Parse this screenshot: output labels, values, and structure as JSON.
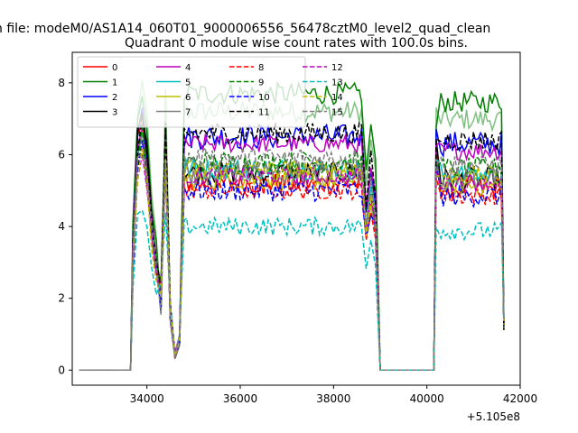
{
  "chart_data": {
    "type": "line",
    "suptitle": "n file: modeM0/AS1A14_060T01_9000006556_56478cztM0_level2_quad_clean",
    "title": "Quadrant 0 module wise count rates with 100.0s bins.",
    "xlabel": "",
    "ylabel": "",
    "x_offset_label": "+5.105e8",
    "xlim": [
      32400,
      42000
    ],
    "ylim": [
      -0.42,
      8.85
    ],
    "xticks": [
      34000,
      36000,
      38000,
      40000,
      42000
    ],
    "xtick_labels": [
      "34000",
      "36000",
      "38000",
      "40000",
      "42000"
    ],
    "yticks": [
      0,
      2,
      4,
      6,
      8
    ],
    "ytick_labels": [
      "0",
      "2",
      "4",
      "6",
      "8"
    ],
    "grid": false,
    "legend_location": "top-left",
    "legend_columns": 4,
    "segments": [
      [
        32550,
        33650
      ],
      [
        33650,
        34650
      ],
      [
        34650,
        38700
      ],
      [
        38700,
        39050
      ],
      [
        39050,
        40150
      ],
      [
        40150,
        41650
      ]
    ],
    "series": [
      {
        "name": "0",
        "color": "#ff0000",
        "dash": "solid",
        "plateau": 5.2,
        "noise": 0.3,
        "peak": 7.0
      },
      {
        "name": "1",
        "color": "#008000",
        "dash": "solid",
        "plateau": 7.7,
        "noise": 0.3,
        "peak": 7.5
      },
      {
        "name": "2",
        "color": "#0000ff",
        "dash": "solid",
        "plateau": 6.5,
        "noise": 0.35,
        "peak": 7.2
      },
      {
        "name": "3",
        "color": "#000000",
        "dash": "solid",
        "plateau": 5.5,
        "noise": 0.3,
        "peak": 7.2
      },
      {
        "name": "4",
        "color": "#bf00bf",
        "dash": "solid",
        "plateau": 6.3,
        "noise": 0.25,
        "peak": 6.8
      },
      {
        "name": "5",
        "color": "#00bfbf",
        "dash": "solid",
        "plateau": 5.6,
        "noise": 0.3,
        "peak": 6.6
      },
      {
        "name": "6",
        "color": "#bfbf00",
        "dash": "solid",
        "plateau": 5.3,
        "noise": 0.3,
        "peak": 6.4
      },
      {
        "name": "7",
        "color": "#7f7f7f",
        "dash": "solid",
        "plateau": 5.5,
        "noise": 0.35,
        "peak": 6.5
      },
      {
        "name": "8",
        "color": "#ff0000",
        "dash": "dashed",
        "plateau": 5.0,
        "noise": 0.25,
        "peak": 6.2
      },
      {
        "name": "9",
        "color": "#008000",
        "dash": "dashed",
        "plateau": 5.8,
        "noise": 0.3,
        "peak": 6.6
      },
      {
        "name": "10",
        "color": "#0000ff",
        "dash": "dashed",
        "plateau": 5.0,
        "noise": 0.3,
        "peak": 6.3
      },
      {
        "name": "11",
        "color": "#000000",
        "dash": "dashed",
        "plateau": 6.6,
        "noise": 0.3,
        "peak": 7.0
      },
      {
        "name": "12",
        "color": "#bf00bf",
        "dash": "dashed",
        "plateau": 5.4,
        "noise": 0.25,
        "peak": 6.0
      },
      {
        "name": "13",
        "color": "#00bfbf",
        "dash": "dashed",
        "plateau": 4.0,
        "noise": 0.25,
        "peak": 4.6
      },
      {
        "name": "14",
        "color": "#bfbf00",
        "dash": "dashed",
        "plateau": 5.6,
        "noise": 0.25,
        "peak": 6.0
      },
      {
        "name": "15",
        "color": "#7f7f7f",
        "dash": "dashed",
        "plateau": 5.9,
        "noise": 0.3,
        "peak": 6.3
      }
    ],
    "extra_series": {
      "color": "#80c080",
      "plateau": 7.2,
      "noise": 0.3,
      "peak": 8.0
    }
  }
}
